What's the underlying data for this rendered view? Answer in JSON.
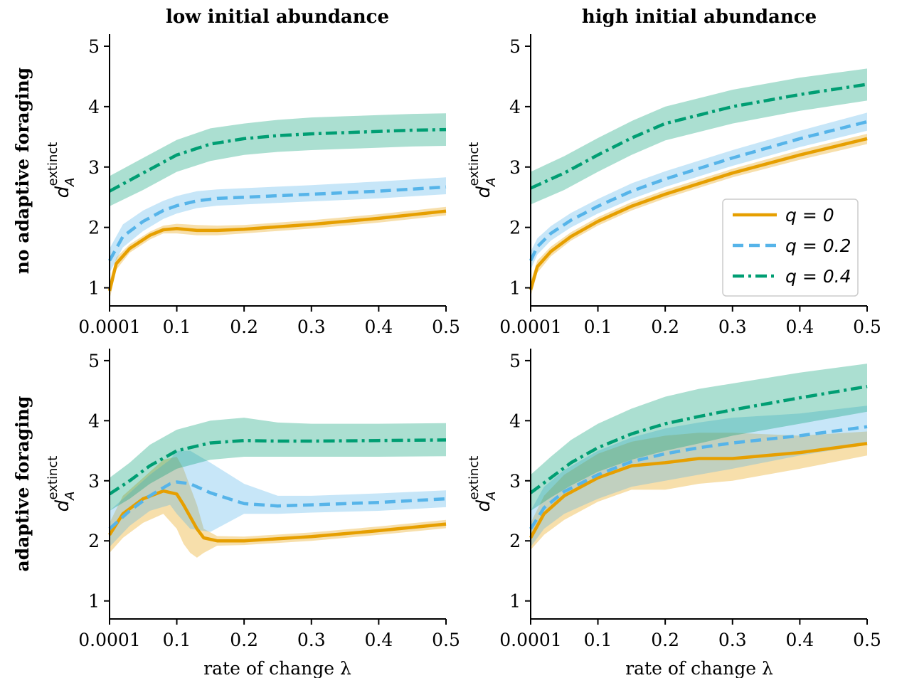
{
  "figure": {
    "col_titles": [
      "low initial abundance",
      "high initial abundance"
    ],
    "row_titles": [
      "no adaptive foraging",
      "adaptive foraging"
    ],
    "ylabel_base": "d",
    "ylabel_sub": "A",
    "ylabel_sup": "extinct",
    "xlabel": "rate of change λ",
    "legend": [
      {
        "label": "q = 0",
        "style": "solid",
        "color": "#E69F00"
      },
      {
        "label": "q = 0.2",
        "style": "dashed",
        "color": "#56B4E9"
      },
      {
        "label": "q = 0.4",
        "style": "dashdot",
        "color": "#009E73"
      }
    ],
    "legend_panel": 1,
    "legend_position": "lower-right"
  },
  "chart_data": [
    {
      "type": "line",
      "panel": "top-left",
      "xlim": [
        0.0001,
        0.5
      ],
      "ylim": [
        0.7,
        5.2
      ],
      "xticks": [
        0.0001,
        0.1,
        0.2,
        0.3,
        0.4,
        0.5
      ],
      "xticklabels": [
        "0.0001",
        "0.1",
        "0.2",
        "0.3",
        "0.4",
        "0.5"
      ],
      "yticks": [
        1,
        2,
        3,
        4,
        5
      ],
      "yticklabels": [
        "1",
        "2",
        "3",
        "4",
        "5"
      ],
      "series": [
        {
          "name": "q = 0",
          "color": "#E69F00",
          "style": "solid",
          "x": [
            0.0001,
            0.01,
            0.03,
            0.06,
            0.08,
            0.1,
            0.13,
            0.16,
            0.2,
            0.3,
            0.4,
            0.5
          ],
          "y": [
            0.95,
            1.4,
            1.65,
            1.87,
            1.96,
            1.98,
            1.95,
            1.95,
            1.97,
            2.05,
            2.15,
            2.27
          ],
          "lower": [
            0.8,
            1.3,
            1.58,
            1.8,
            1.9,
            1.9,
            1.87,
            1.87,
            1.9,
            1.98,
            2.08,
            2.2
          ],
          "upper": [
            1.1,
            1.5,
            1.72,
            1.93,
            2.03,
            2.06,
            2.04,
            2.03,
            2.04,
            2.12,
            2.22,
            2.34
          ]
        },
        {
          "name": "q = 0.2",
          "color": "#56B4E9",
          "style": "dashed",
          "x": [
            0.0001,
            0.02,
            0.05,
            0.08,
            0.1,
            0.13,
            0.16,
            0.2,
            0.3,
            0.4,
            0.5
          ],
          "y": [
            1.45,
            1.85,
            2.1,
            2.28,
            2.36,
            2.44,
            2.48,
            2.5,
            2.55,
            2.6,
            2.67
          ],
          "lower": [
            1.25,
            1.67,
            1.94,
            2.14,
            2.23,
            2.32,
            2.36,
            2.38,
            2.43,
            2.48,
            2.55
          ],
          "upper": [
            1.65,
            2.05,
            2.28,
            2.44,
            2.52,
            2.6,
            2.63,
            2.65,
            2.7,
            2.76,
            2.83
          ]
        },
        {
          "name": "q = 0.4",
          "color": "#009E73",
          "style": "dashdot",
          "x": [
            0.0001,
            0.05,
            0.1,
            0.15,
            0.2,
            0.25,
            0.3,
            0.35,
            0.4,
            0.45,
            0.5
          ],
          "y": [
            2.6,
            2.9,
            3.2,
            3.38,
            3.47,
            3.52,
            3.55,
            3.57,
            3.59,
            3.61,
            3.62
          ],
          "lower": [
            2.35,
            2.62,
            2.92,
            3.1,
            3.2,
            3.25,
            3.28,
            3.3,
            3.32,
            3.34,
            3.35
          ],
          "upper": [
            2.85,
            3.15,
            3.45,
            3.64,
            3.72,
            3.78,
            3.82,
            3.84,
            3.86,
            3.88,
            3.89
          ]
        }
      ]
    },
    {
      "type": "line",
      "panel": "top-right",
      "xlim": [
        0.0001,
        0.5
      ],
      "ylim": [
        0.7,
        5.2
      ],
      "xticks": [
        0.0001,
        0.1,
        0.2,
        0.3,
        0.4,
        0.5
      ],
      "xticklabels": [
        "0.0001",
        "0.1",
        "0.2",
        "0.3",
        "0.4",
        "0.5"
      ],
      "yticks": [
        1,
        2,
        3,
        4,
        5
      ],
      "yticklabels": [
        "1",
        "2",
        "3",
        "4",
        "5"
      ],
      "series": [
        {
          "name": "q = 0",
          "color": "#E69F00",
          "style": "solid",
          "x": [
            0.0001,
            0.01,
            0.03,
            0.06,
            0.1,
            0.15,
            0.2,
            0.3,
            0.4,
            0.5
          ],
          "y": [
            0.97,
            1.35,
            1.6,
            1.85,
            2.1,
            2.35,
            2.55,
            2.9,
            3.2,
            3.47
          ],
          "lower": [
            0.85,
            1.25,
            1.52,
            1.78,
            2.03,
            2.28,
            2.48,
            2.83,
            3.12,
            3.38
          ],
          "upper": [
            1.1,
            1.45,
            1.68,
            1.92,
            2.17,
            2.42,
            2.62,
            2.97,
            3.28,
            3.55
          ]
        },
        {
          "name": "q = 0.2",
          "color": "#56B4E9",
          "style": "dashed",
          "x": [
            0.0001,
            0.01,
            0.03,
            0.06,
            0.1,
            0.15,
            0.2,
            0.3,
            0.4,
            0.5
          ],
          "y": [
            1.45,
            1.68,
            1.9,
            2.12,
            2.35,
            2.6,
            2.8,
            3.15,
            3.47,
            3.75
          ],
          "lower": [
            1.3,
            1.55,
            1.78,
            2.0,
            2.23,
            2.47,
            2.67,
            3.02,
            3.33,
            3.6
          ],
          "upper": [
            1.6,
            1.82,
            2.02,
            2.24,
            2.47,
            2.73,
            2.93,
            3.28,
            3.6,
            3.9
          ]
        },
        {
          "name": "q = 0.4",
          "color": "#009E73",
          "style": "dashdot",
          "x": [
            0.0001,
            0.05,
            0.1,
            0.15,
            0.2,
            0.3,
            0.4,
            0.5
          ],
          "y": [
            2.65,
            2.9,
            3.2,
            3.48,
            3.72,
            4.0,
            4.2,
            4.37
          ],
          "lower": [
            2.38,
            2.62,
            2.92,
            3.2,
            3.44,
            3.72,
            3.93,
            4.1
          ],
          "upper": [
            2.92,
            3.18,
            3.48,
            3.76,
            4.0,
            4.28,
            4.48,
            4.63
          ]
        }
      ]
    },
    {
      "type": "line",
      "panel": "bottom-left",
      "xlim": [
        0.0001,
        0.5
      ],
      "ylim": [
        0.7,
        5.2
      ],
      "xticks": [
        0.0001,
        0.1,
        0.2,
        0.3,
        0.4,
        0.5
      ],
      "xticklabels": [
        "0.0001",
        "0.1",
        "0.2",
        "0.3",
        "0.4",
        "0.5"
      ],
      "yticks": [
        1,
        2,
        3,
        4,
        5
      ],
      "yticklabels": [
        "1",
        "2",
        "3",
        "4",
        "5"
      ],
      "series": [
        {
          "name": "q = 0",
          "color": "#E69F00",
          "style": "solid",
          "x": [
            0.0001,
            0.02,
            0.05,
            0.08,
            0.1,
            0.11,
            0.12,
            0.13,
            0.14,
            0.16,
            0.2,
            0.3,
            0.4,
            0.5
          ],
          "y": [
            2.1,
            2.45,
            2.7,
            2.83,
            2.78,
            2.6,
            2.4,
            2.2,
            2.05,
            2.0,
            2.0,
            2.07,
            2.17,
            2.28
          ],
          "lower": [
            1.8,
            2.05,
            2.3,
            2.45,
            2.2,
            1.95,
            1.8,
            1.72,
            1.8,
            1.92,
            1.93,
            2.0,
            2.1,
            2.21
          ],
          "upper": [
            2.3,
            2.75,
            3.05,
            3.35,
            3.4,
            3.2,
            2.9,
            2.6,
            2.2,
            2.08,
            2.07,
            2.14,
            2.24,
            2.35
          ]
        },
        {
          "name": "q = 0.2",
          "color": "#56B4E9",
          "style": "dashed",
          "x": [
            0.0001,
            0.03,
            0.06,
            0.09,
            0.1,
            0.12,
            0.15,
            0.2,
            0.25,
            0.3,
            0.4,
            0.5
          ],
          "y": [
            2.2,
            2.5,
            2.75,
            2.95,
            2.98,
            2.95,
            2.8,
            2.62,
            2.58,
            2.6,
            2.64,
            2.7
          ],
          "lower": [
            1.9,
            2.25,
            2.5,
            2.6,
            2.45,
            2.2,
            2.15,
            2.45,
            2.45,
            2.47,
            2.5,
            2.56
          ],
          "upper": [
            2.5,
            2.8,
            3.1,
            3.35,
            3.5,
            3.5,
            3.3,
            2.95,
            2.75,
            2.75,
            2.79,
            2.84
          ]
        },
        {
          "name": "q = 0.4",
          "color": "#009E73",
          "style": "dashdot",
          "x": [
            0.0001,
            0.03,
            0.06,
            0.1,
            0.15,
            0.2,
            0.25,
            0.3,
            0.4,
            0.5
          ],
          "y": [
            2.78,
            3.0,
            3.25,
            3.5,
            3.63,
            3.67,
            3.66,
            3.66,
            3.67,
            3.68
          ],
          "lower": [
            2.5,
            2.7,
            2.95,
            3.2,
            3.35,
            3.4,
            3.4,
            3.4,
            3.4,
            3.41
          ],
          "upper": [
            3.05,
            3.3,
            3.6,
            3.85,
            4.0,
            4.05,
            3.97,
            3.95,
            3.95,
            3.96
          ]
        }
      ]
    },
    {
      "type": "line",
      "panel": "bottom-right",
      "xlim": [
        0.0001,
        0.5
      ],
      "ylim": [
        0.7,
        5.2
      ],
      "xticks": [
        0.0001,
        0.1,
        0.2,
        0.3,
        0.4,
        0.5
      ],
      "xticklabels": [
        "0.0001",
        "0.1",
        "0.2",
        "0.3",
        "0.4",
        "0.5"
      ],
      "yticks": [
        1,
        2,
        3,
        4,
        5
      ],
      "yticklabels": [
        "1",
        "2",
        "3",
        "4",
        "5"
      ],
      "series": [
        {
          "name": "q = 0",
          "color": "#E69F00",
          "style": "solid",
          "x": [
            0.0001,
            0.02,
            0.05,
            0.1,
            0.15,
            0.2,
            0.25,
            0.3,
            0.4,
            0.5
          ],
          "y": [
            2.05,
            2.45,
            2.75,
            3.05,
            3.25,
            3.3,
            3.37,
            3.37,
            3.47,
            3.62
          ],
          "lower": [
            1.85,
            2.1,
            2.35,
            2.65,
            2.85,
            2.85,
            2.95,
            3.0,
            3.2,
            3.42
          ],
          "upper": [
            2.3,
            2.75,
            3.1,
            3.45,
            3.65,
            3.75,
            3.8,
            3.8,
            3.75,
            3.82
          ]
        },
        {
          "name": "q = 0.2",
          "color": "#56B4E9",
          "style": "dashed",
          "x": [
            0.0001,
            0.02,
            0.05,
            0.1,
            0.15,
            0.2,
            0.25,
            0.3,
            0.4,
            0.5
          ],
          "y": [
            2.2,
            2.55,
            2.82,
            3.1,
            3.32,
            3.45,
            3.55,
            3.63,
            3.75,
            3.9
          ],
          "lower": [
            1.9,
            2.2,
            2.45,
            2.7,
            2.9,
            3.0,
            3.1,
            3.2,
            3.42,
            3.6
          ],
          "upper": [
            2.5,
            2.9,
            3.18,
            3.5,
            3.72,
            3.87,
            3.97,
            4.05,
            4.12,
            4.25
          ]
        },
        {
          "name": "q = 0.4",
          "color": "#009E73",
          "style": "dashdot",
          "x": [
            0.0001,
            0.03,
            0.06,
            0.1,
            0.15,
            0.2,
            0.25,
            0.3,
            0.4,
            0.5
          ],
          "y": [
            2.8,
            3.05,
            3.3,
            3.55,
            3.78,
            3.95,
            4.07,
            4.18,
            4.38,
            4.57
          ],
          "lower": [
            2.5,
            2.72,
            2.92,
            3.15,
            3.35,
            3.5,
            3.62,
            3.75,
            3.95,
            4.15
          ],
          "upper": [
            3.1,
            3.4,
            3.68,
            3.95,
            4.2,
            4.4,
            4.53,
            4.62,
            4.8,
            4.95
          ]
        }
      ]
    }
  ]
}
